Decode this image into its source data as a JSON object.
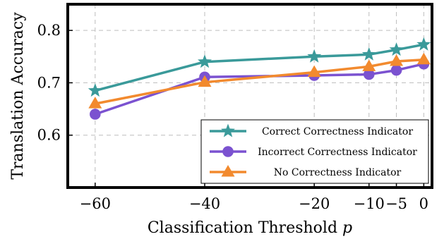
{
  "chart_data": {
    "type": "line",
    "xlabel": "Classification Threshold p",
    "ylabel": "Translation Accuracy",
    "x": [
      -60,
      -40,
      -20,
      -10,
      -5,
      0
    ],
    "x_ticks": [
      "−60",
      "−40",
      "−20",
      "−10",
      "−5",
      "0"
    ],
    "y_ticks": [
      "0.6",
      "0.7",
      "0.8"
    ],
    "xlim": [
      -65,
      1.5
    ],
    "ylim": [
      0.5,
      0.85
    ],
    "grid": true,
    "legend_position": "bottom-right",
    "series": [
      {
        "name": "Correct Correctness Indicator",
        "values": [
          0.685,
          0.74,
          0.75,
          0.754,
          0.763,
          0.773
        ],
        "color": "#3a9a9a",
        "marker": "star"
      },
      {
        "name": "Incorrect Correctness Indicator",
        "values": [
          0.64,
          0.711,
          0.714,
          0.716,
          0.724,
          0.736
        ],
        "color": "#7b52d0",
        "marker": "circle"
      },
      {
        "name": "No Correctness Indicator",
        "values": [
          0.66,
          0.701,
          0.72,
          0.731,
          0.741,
          0.744
        ],
        "color": "#f28a2e",
        "marker": "triangle"
      }
    ]
  }
}
